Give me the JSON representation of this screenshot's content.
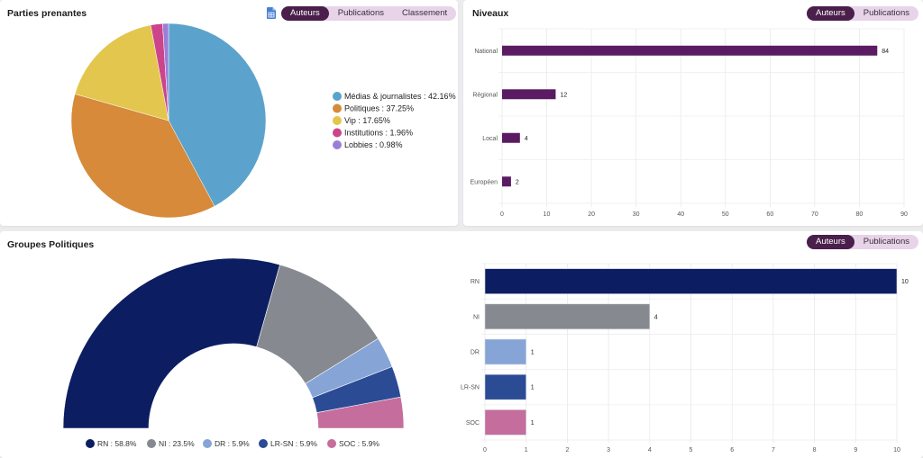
{
  "panels": {
    "parties": {
      "title": "Parties prenantes",
      "export_icon": "spreadsheet-icon",
      "toggle": [
        {
          "label": "Auteurs",
          "active": true
        },
        {
          "label": "Publications",
          "active": false
        },
        {
          "label": "Classement",
          "active": false
        }
      ]
    },
    "niveaux": {
      "title": "Niveaux",
      "toggle": [
        {
          "label": "Auteurs",
          "active": true
        },
        {
          "label": "Publications",
          "active": false
        }
      ]
    },
    "groupes": {
      "title": "Groupes Politiques",
      "toggle": [
        {
          "label": "Auteurs",
          "active": true
        },
        {
          "label": "Publications",
          "active": false
        }
      ]
    }
  },
  "colors": {
    "accent": "#4a1f4b",
    "toggle_bg": "#e7d4e8",
    "niveaux_bar": "#5a1b63"
  },
  "chart_data": [
    {
      "id": "parties",
      "type": "pie",
      "title": "Parties prenantes",
      "legend_position": "right",
      "slices": [
        {
          "label": "Médias & journalistes",
          "value": 42.16,
          "display": "Médias & journalistes : 42.16%",
          "color": "#5ba3cc"
        },
        {
          "label": "Politiques",
          "value": 37.25,
          "display": "Politiques : 37.25%",
          "color": "#d68a3a"
        },
        {
          "label": "Vip",
          "value": 17.65,
          "display": "Vip : 17.65%",
          "color": "#e3c64d"
        },
        {
          "label": "Institutions",
          "value": 1.96,
          "display": "Institutions : 1.96%",
          "color": "#cc4489"
        },
        {
          "label": "Lobbies",
          "value": 0.98,
          "display": "Lobbies : 0.98%",
          "color": "#9a7fd8"
        }
      ]
    },
    {
      "id": "niveaux",
      "type": "bar",
      "orientation": "horizontal",
      "title": "Niveaux",
      "categories": [
        "National",
        "Régional",
        "Local",
        "Européen"
      ],
      "values": [
        84,
        12,
        4,
        2
      ],
      "color": "#5a1b63",
      "xlim": [
        0,
        90
      ],
      "xticks": [
        0,
        10,
        20,
        30,
        40,
        50,
        60,
        70,
        80,
        90
      ],
      "grid": true
    },
    {
      "id": "groupes-donut",
      "type": "pie",
      "variant": "half-donut",
      "title": "Groupes Politiques",
      "legend_position": "bottom",
      "slices": [
        {
          "label": "RN",
          "value": 58.8,
          "display": "RN : 58.8%",
          "color": "#0c1e61"
        },
        {
          "label": "NI",
          "value": 23.5,
          "display": "NI : 23.5%",
          "color": "#868a90"
        },
        {
          "label": "DR",
          "value": 5.9,
          "display": "DR : 5.9%",
          "color": "#86a5d6"
        },
        {
          "label": "LR-SN",
          "value": 5.9,
          "display": "LR-SN : 5.9%",
          "color": "#2b4b95"
        },
        {
          "label": "SOC",
          "value": 5.9,
          "display": "SOC : 5.9%",
          "color": "#c56d9c"
        }
      ]
    },
    {
      "id": "groupes-bar",
      "type": "bar",
      "orientation": "horizontal",
      "title": "Groupes Politiques",
      "categories": [
        "RN",
        "NI",
        "DR",
        "LR-SN",
        "SOC"
      ],
      "values": [
        10,
        4,
        1,
        1,
        1
      ],
      "colors": [
        "#0c1e61",
        "#868a90",
        "#86a5d6",
        "#2b4b95",
        "#c56d9c"
      ],
      "xlim": [
        0,
        10
      ],
      "xticks": [
        0,
        1,
        2,
        3,
        4,
        5,
        6,
        7,
        8,
        9,
        10
      ],
      "grid": true
    }
  ]
}
